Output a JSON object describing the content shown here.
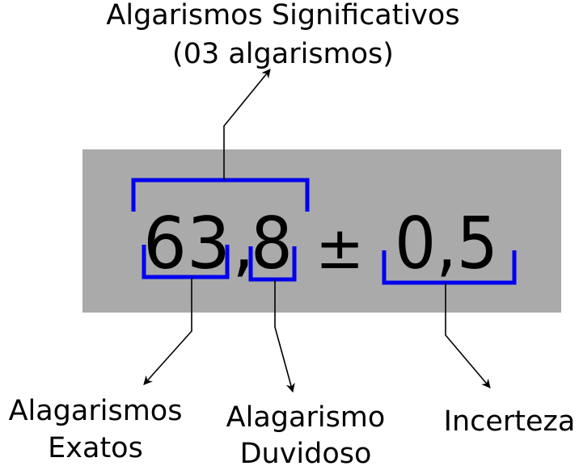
{
  "colors": {
    "panel": "#aaaaaa",
    "bracket": "#0000ee",
    "ink": "#000000"
  },
  "measurement": {
    "value": "63,8",
    "sign": "±",
    "uncertainty": "0,5",
    "exact_digits": "63",
    "separator": ",",
    "doubtful_digit": "8"
  },
  "labels": {
    "significant_line1": "Algarismos Significativos",
    "significant_line2": "(03 algarismos)",
    "exact_line1": "Alagarismos",
    "exact_line2": "Exatos",
    "doubtful_line1": "Alagarismo",
    "doubtful_line2": "Duvidoso",
    "uncertainty": "Incerteza"
  }
}
